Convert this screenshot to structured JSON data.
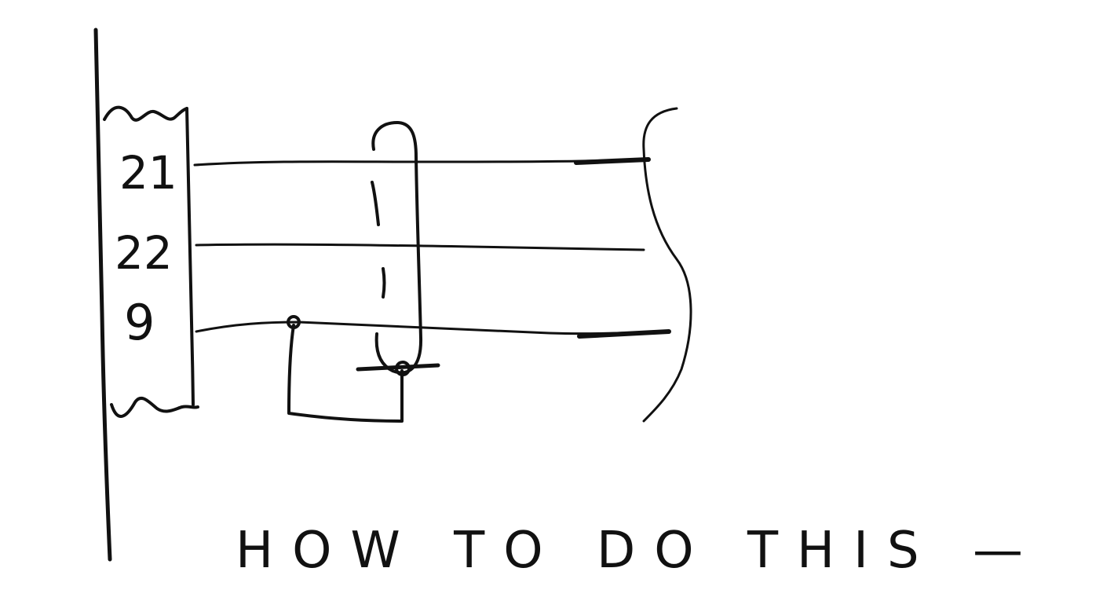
{
  "terminal_labels": {
    "top": "21",
    "middle": "22",
    "bottom": "9"
  },
  "caption": "HOW TO DO THIS —",
  "colors": {
    "ink": "#111111",
    "paper": "#ffffff"
  }
}
